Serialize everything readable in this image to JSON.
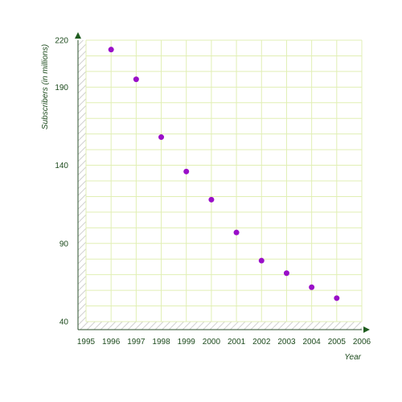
{
  "chart_data": {
    "type": "scatter",
    "xlabel": "Year",
    "ylabel": "Subscribers (in millions)",
    "xlim": [
      1995,
      2006
    ],
    "ylim": [
      40,
      220
    ],
    "x_ticks": [
      "1995",
      "1996",
      "1997",
      "1998",
      "1999",
      "2000",
      "2001",
      "2002",
      "2003",
      "2004",
      "2005",
      "2006"
    ],
    "y_ticks": [
      "40",
      "90",
      "140",
      "190",
      "220"
    ],
    "grid": true,
    "x": [
      1996,
      1997,
      1998,
      1999,
      2000,
      2001,
      2002,
      2003,
      2004,
      2005
    ],
    "y": [
      214,
      195,
      158,
      136,
      118,
      97,
      79,
      71,
      62,
      55
    ],
    "colors": {
      "point": "#9a0fc8",
      "grid": "#e1efb4",
      "axis": "#2a4f2a",
      "hatch": "#d0d0d0",
      "text": "#1c4a1c",
      "arrow": "#1f5c1f"
    }
  }
}
